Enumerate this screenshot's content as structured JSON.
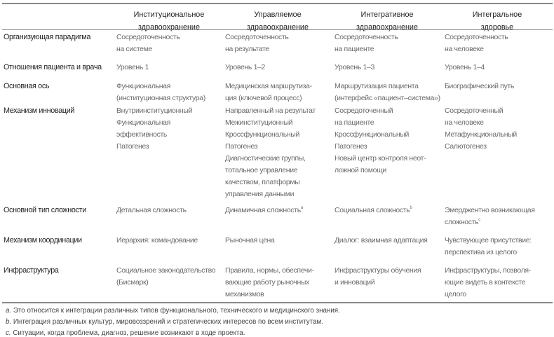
{
  "headers": [
    "Институциональное\nздравоохранение",
    "Управляемое\nздравоохранение",
    "Интегративное\nздравоохранение",
    "Интегральное\nздоровье"
  ],
  "rows": [
    {
      "label": "Организующая парадигма",
      "cells": [
        "Сосредоточенность\nна системе",
        "Сосредоточенность\nна результате",
        "Сосредоточенность\nна пациенте",
        "Сосредоточенность\nна человеке"
      ]
    },
    {
      "label": "Отношения пациента и врача",
      "cells": [
        "Уровень 1",
        "Уровень 1–2",
        "Уровень 1–3",
        "Уровень 1–4"
      ]
    },
    {
      "label": "Основная ось",
      "cells": [
        "Функциональная\n(институционная структура)",
        "Медицинская маршрутиза-\nция (ключевой процесс)",
        "Маршрутизация пациента\n(интерфейс «пациент–система»)",
        "Биографический путь"
      ]
    },
    {
      "label": "Механизм инноваций",
      "cells": [
        "Внутриинституционный\nФункциональная\nэффективность\nПатогенез",
        "Направленный на результат\nМежинституционный\nКроссфункциональный\nПатогенез\nДиагностические группы,\nтотальное управление\nкачеством, платформы\nуправления данными",
        "Сосредоточенный\nна пациенте\nКроссфункциональный\nПатогенез\nНовый центр контроля неот-\nложной помощи",
        "Сосредоточенный\nна человеке\nМетафункциональный\nСалютогенез"
      ]
    },
    {
      "label": "Основной тип сложности",
      "cells": [
        "Детальная сложность",
        "Динамичная сложность",
        "Социальная сложность",
        "Эмерджентно возникающая\nсложность"
      ],
      "sups": [
        "",
        "a",
        "b",
        "c"
      ]
    },
    {
      "label": "Механизм координации",
      "cells": [
        "Иерархия: командование",
        "Рыночная цена",
        "Диалог: взаимная адаптация",
        "Чувствующее присутствие:\nперспектива из целого"
      ]
    },
    {
      "label": "Инфраструктура",
      "cells": [
        "Социальное законодательство\n(Бисмарк)",
        "Правила, нормы, обеспечи-\nвающие работу рыночных\nмеханизмов",
        "Инфраструктуры обучения\nи инноваций",
        "Инфраструктуры, позволя-\nющие видеть в контексте\nцелого"
      ]
    }
  ],
  "footnotes": [
    {
      "mark": "a.",
      "text": " Это относится к интеграции различных типов функционального, технического и медицинского знания."
    },
    {
      "mark": "b.",
      "text": " Интеграция различных культур, мировоззрений и стратегических интересов по всем институтам."
    },
    {
      "mark": "c.",
      "text": " Ситуации, когда проблема, диагноз, решение возникают в ходе проекта."
    }
  ]
}
